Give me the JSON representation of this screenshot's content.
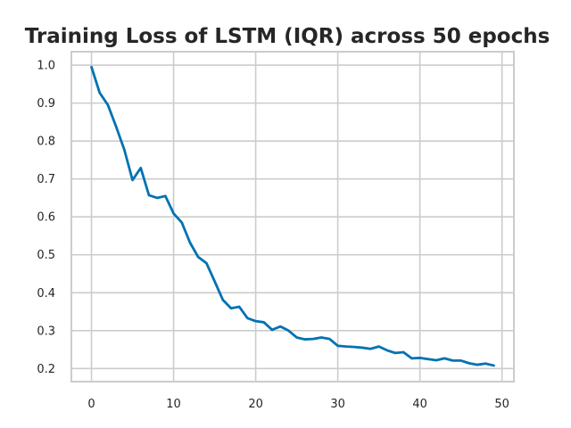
{
  "chart_data": {
    "type": "line",
    "title": "Training Loss of LSTM (IQR) across 50 epochs",
    "xlabel": "",
    "ylabel": "",
    "xlim": [
      -2.45,
      51.45
    ],
    "ylim": [
      0.1655,
      1.0355
    ],
    "xticks": [
      0,
      10,
      20,
      30,
      40,
      50
    ],
    "yticks": [
      0.2,
      0.3,
      0.4,
      0.5,
      0.6,
      0.7,
      0.8,
      0.9,
      1.0
    ],
    "ytick_labels": [
      "0.2",
      "0.3",
      "0.4",
      "0.5",
      "0.6",
      "0.7",
      "0.8",
      "0.9",
      "1.0"
    ],
    "xtick_labels": [
      "0",
      "10",
      "20",
      "30",
      "40",
      "50"
    ],
    "grid": true,
    "legend": "none",
    "series": [
      {
        "color": "#0072b2",
        "x": [
          0,
          1,
          2,
          3,
          4,
          5,
          6,
          7,
          8,
          9,
          10,
          11,
          12,
          13,
          14,
          15,
          16,
          17,
          18,
          19,
          20,
          21,
          22,
          23,
          24,
          25,
          26,
          27,
          28,
          29,
          30,
          31,
          32,
          33,
          34,
          35,
          36,
          37,
          38,
          39,
          40,
          41,
          42,
          43,
          44,
          45,
          46,
          47,
          48,
          49
        ],
        "values": [
          0.995,
          0.927,
          0.895,
          0.838,
          0.777,
          0.697,
          0.729,
          0.657,
          0.65,
          0.655,
          0.609,
          0.585,
          0.532,
          0.494,
          0.478,
          0.43,
          0.381,
          0.359,
          0.363,
          0.333,
          0.325,
          0.322,
          0.302,
          0.311,
          0.3,
          0.282,
          0.277,
          0.278,
          0.282,
          0.278,
          0.26,
          0.258,
          0.257,
          0.255,
          0.252,
          0.258,
          0.248,
          0.241,
          0.243,
          0.227,
          0.228,
          0.225,
          0.222,
          0.227,
          0.221,
          0.221,
          0.214,
          0.21,
          0.213,
          0.208
        ]
      }
    ]
  }
}
